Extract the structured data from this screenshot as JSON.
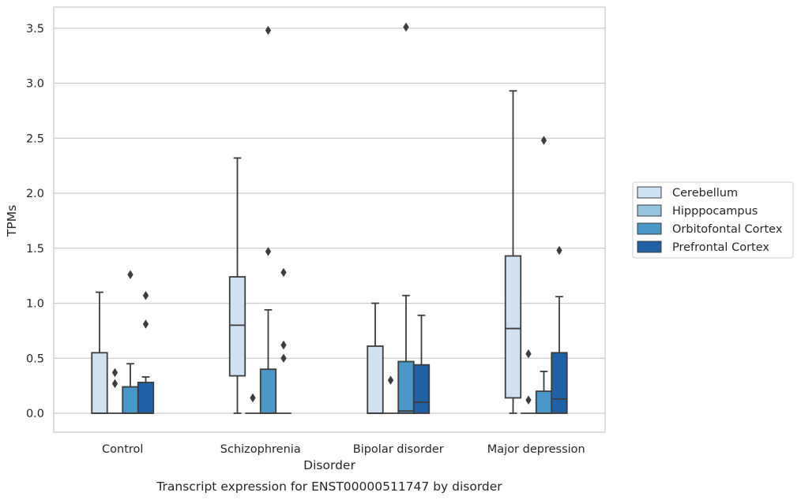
{
  "chart_data": {
    "type": "box",
    "caption": "Transcript expression for ENST00000511747 by disorder",
    "xlabel": "Disorder",
    "ylabel": "TPMs",
    "ylim": [
      -0.17,
      3.68
    ],
    "yticks": [
      0.0,
      0.5,
      1.0,
      1.5,
      2.0,
      2.5,
      3.0,
      3.5
    ],
    "ytick_labels": [
      "0.0",
      "0.5",
      "1.0",
      "1.5",
      "2.0",
      "2.5",
      "3.0",
      "3.5"
    ],
    "grid": "horizontal",
    "legend_position": "right",
    "categories": [
      "Control",
      "Schizophrenia",
      "Bipolar disorder",
      "Major depression"
    ],
    "series": [
      {
        "name": "Cerebellum",
        "color": "#d0e1f2",
        "boxes": [
          {
            "whislo": 0,
            "q1": 0,
            "med": 0,
            "q3": 0.55,
            "whishi": 1.1,
            "fliers": []
          },
          {
            "whislo": 0,
            "q1": 0.34,
            "med": 0.8,
            "q3": 1.24,
            "whishi": 2.32,
            "fliers": []
          },
          {
            "whislo": 0,
            "q1": 0,
            "med": 0,
            "q3": 0.61,
            "whishi": 1.0,
            "fliers": []
          },
          {
            "whislo": 0,
            "q1": 0.14,
            "med": 0.77,
            "q3": 1.43,
            "whishi": 2.93,
            "fliers": []
          }
        ]
      },
      {
        "name": "Hipppocampus",
        "color": "#94c4df",
        "boxes": [
          {
            "whislo": 0,
            "q1": 0,
            "med": 0,
            "q3": 0,
            "whishi": 0,
            "fliers": [
              0.27,
              0.37
            ]
          },
          {
            "whislo": 0,
            "q1": 0,
            "med": 0,
            "q3": 0,
            "whishi": 0,
            "fliers": [
              0.14
            ]
          },
          {
            "whislo": 0,
            "q1": 0,
            "med": 0,
            "q3": 0,
            "whishi": 0,
            "fliers": [
              0.3
            ]
          },
          {
            "whislo": 0,
            "q1": 0,
            "med": 0,
            "q3": 0,
            "whishi": 0,
            "fliers": [
              0.12,
              0.54
            ]
          }
        ]
      },
      {
        "name": "Orbitofontal Cortex",
        "color": "#4a98c9",
        "boxes": [
          {
            "whislo": 0,
            "q1": 0,
            "med": 0,
            "q3": 0.24,
            "whishi": 0.45,
            "fliers": [
              1.26
            ]
          },
          {
            "whislo": 0,
            "q1": 0,
            "med": 0,
            "q3": 0.4,
            "whishi": 0.94,
            "fliers": [
              1.47,
              3.48
            ]
          },
          {
            "whislo": 0,
            "q1": 0,
            "med": 0.02,
            "q3": 0.47,
            "whishi": 1.07,
            "fliers": [
              3.51
            ]
          },
          {
            "whislo": 0,
            "q1": 0,
            "med": 0,
            "q3": 0.2,
            "whishi": 0.38,
            "fliers": [
              2.48
            ]
          }
        ]
      },
      {
        "name": "Prefrontal Cortex",
        "color": "#2060a7",
        "boxes": [
          {
            "whislo": 0,
            "q1": 0,
            "med": 0,
            "q3": 0.28,
            "whishi": 0.33,
            "fliers": [
              0.81,
              1.07
            ]
          },
          {
            "whislo": 0,
            "q1": 0,
            "med": 0,
            "q3": 0,
            "whishi": 0,
            "fliers": [
              0.5,
              0.62,
              1.28
            ]
          },
          {
            "whislo": 0,
            "q1": 0,
            "med": 0.1,
            "q3": 0.44,
            "whishi": 0.89,
            "fliers": []
          },
          {
            "whislo": 0,
            "q1": 0,
            "med": 0.13,
            "q3": 0.55,
            "whishi": 1.06,
            "fliers": [
              1.48
            ]
          }
        ]
      }
    ]
  }
}
